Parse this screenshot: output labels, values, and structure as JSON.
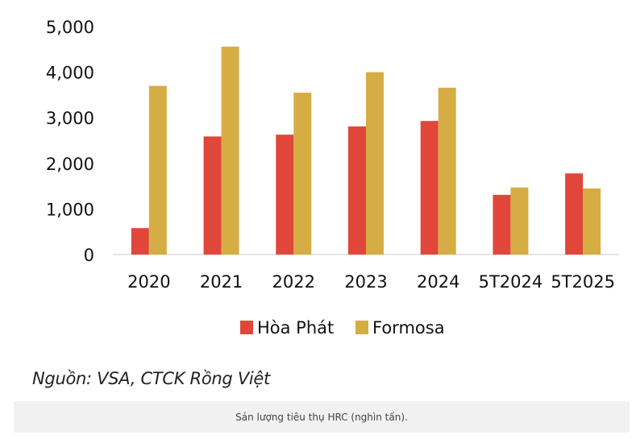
{
  "chart_data": {
    "type": "bar",
    "categories": [
      "2020",
      "2021",
      "2022",
      "2023",
      "2024",
      "5T2024",
      "5T2025"
    ],
    "series": [
      {
        "name": "Hòa Phát",
        "color": "#e0473a",
        "values": [
          580,
          2590,
          2630,
          2810,
          2930,
          1310,
          1780
        ]
      },
      {
        "name": "Formosa",
        "color": "#d6ad45",
        "values": [
          3700,
          4560,
          3550,
          4000,
          3660,
          1470,
          1450
        ]
      }
    ],
    "y_ticks": [
      "0",
      "1,000",
      "2,000",
      "3,000",
      "4,000",
      "5,000"
    ],
    "y_tick_values": [
      0,
      1000,
      2000,
      3000,
      4000,
      5000
    ],
    "ylim": [
      0,
      5000
    ],
    "title": "",
    "xlabel": "",
    "ylabel": "",
    "legend_position": "bottom-center",
    "grid": false
  },
  "source": "Nguồn: VSA, CTCK Rồng Việt",
  "caption": "Sản lượng tiêu thụ HRC (nghìn tấn)."
}
